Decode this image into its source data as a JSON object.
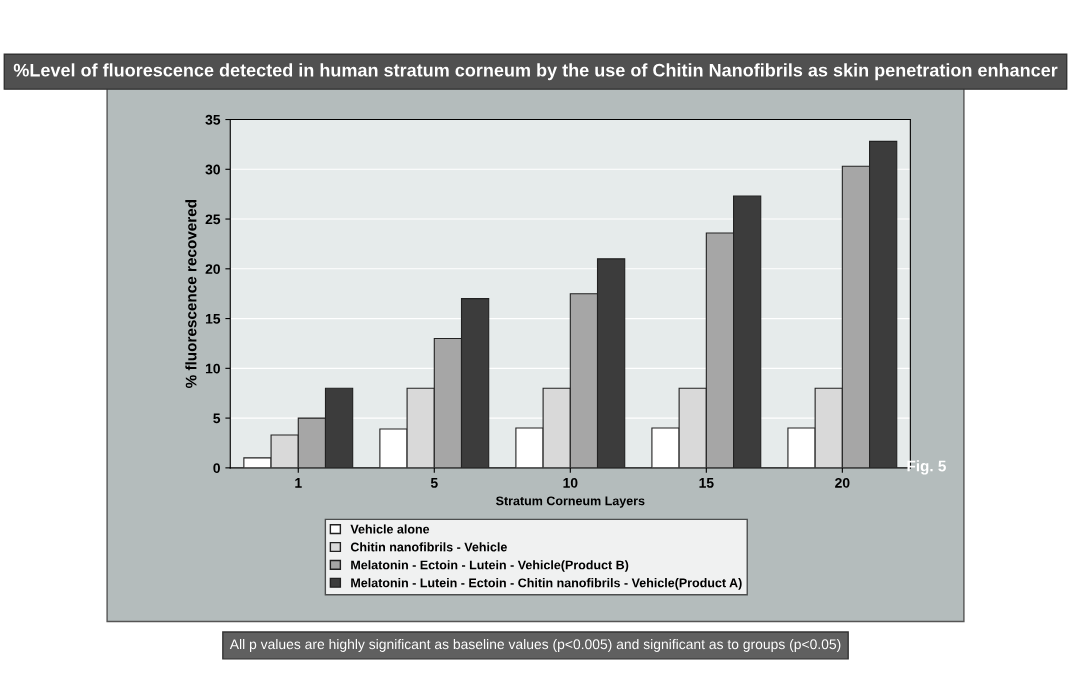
{
  "chart_data": {
    "type": "bar",
    "title": "%Level of fluorescence detected in human stratum corneum by the use of Chitin Nanofibrils as skin penetration enhancer",
    "xlabel": "Stratum Corneum Layers",
    "ylabel": "% fluorescence recovered",
    "categories": [
      "1",
      "5",
      "10",
      "15",
      "20"
    ],
    "series": [
      {
        "name": "Vehicle alone",
        "color": "#ffffff",
        "values": [
          1.0,
          3.9,
          4.0,
          4.0,
          4.0
        ]
      },
      {
        "name": "Chitin nanofibrils - Vehicle",
        "color": "#d9d9d9",
        "values": [
          3.3,
          8.0,
          8.0,
          8.0,
          8.0
        ]
      },
      {
        "name": "Melatonin - Ectoin - Lutein - Vehicle(Product B)",
        "color": "#a6a6a6",
        "values": [
          5.0,
          13.0,
          17.5,
          23.6,
          30.3
        ]
      },
      {
        "name": "Melatonin - Lutein - Ectoin - Chitin nanofibrils - Vehicle(Product A)",
        "color": "#3c3c3c",
        "values": [
          8.0,
          17.0,
          21.0,
          27.3,
          32.8
        ]
      }
    ],
    "ylim": [
      0,
      35
    ],
    "yticks": [
      0,
      5,
      10,
      15,
      20,
      25,
      30,
      35
    ],
    "grid": "y",
    "legend": "bottom",
    "annotations": [
      "Fig. 5",
      "All p values are highly significant as baseline values (p<0.005) and significant as to groups (p<0.05)"
    ]
  }
}
